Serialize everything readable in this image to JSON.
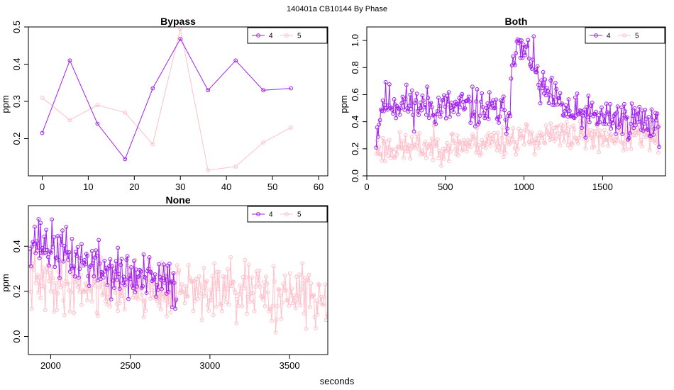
{
  "figure": {
    "suptitle": "140401a    CB10144   By Phase",
    "xlabel": "seconds"
  },
  "chart_data": [
    {
      "type": "line",
      "title": "Bypass",
      "ylabel": "ppm",
      "xlim": [
        -3,
        62
      ],
      "ylim": [
        0.1,
        0.5
      ],
      "xticks": [
        0,
        10,
        20,
        30,
        40,
        50,
        60
      ],
      "yticks": [
        0.2,
        0.3,
        0.4,
        0.5
      ],
      "legend": {
        "entries": [
          "4",
          "5"
        ],
        "position": "top-right"
      },
      "series": [
        {
          "name": "4",
          "color": "#a020f0",
          "x": [
            0,
            6,
            12,
            18,
            24,
            30,
            36,
            42,
            48,
            54
          ],
          "y": [
            0.215,
            0.41,
            0.24,
            0.145,
            0.335,
            0.468,
            0.33,
            0.41,
            0.33,
            0.335
          ]
        },
        {
          "name": "5",
          "color": "#ffc0cb",
          "x": [
            0,
            6,
            12,
            18,
            24,
            30,
            36,
            42,
            48,
            54
          ],
          "y": [
            0.31,
            0.25,
            0.29,
            0.27,
            0.185,
            0.495,
            0.115,
            0.125,
            0.19,
            0.23
          ]
        }
      ]
    },
    {
      "type": "line",
      "title": "Both",
      "ylabel": "ppm",
      "xlim": [
        0,
        1900
      ],
      "ylim": [
        0.0,
        1.1
      ],
      "xticks": [
        0,
        500,
        1000,
        1500
      ],
      "yticks": [
        0.0,
        0.2,
        0.4,
        0.6,
        0.8,
        1.0
      ],
      "legend": {
        "entries": [
          "4",
          "5"
        ],
        "position": "top-right"
      },
      "series": [
        {
          "name": "4",
          "color": "#a020f0",
          "x_range": [
            60,
            1860
          ],
          "step": 6,
          "seed": 11,
          "levels": [
            [
              60,
              0.3
            ],
            [
              100,
              0.55
            ],
            [
              500,
              0.5
            ],
            [
              700,
              0.5
            ],
            [
              910,
              0.45
            ],
            [
              925,
              0.95
            ],
            [
              1050,
              0.88
            ],
            [
              1100,
              0.65
            ],
            [
              1300,
              0.45
            ],
            [
              1860,
              0.4
            ]
          ],
          "spread": 0.09
        },
        {
          "name": "5",
          "color": "#ffc0cb",
          "x_range": [
            60,
            1860
          ],
          "step": 6,
          "seed": 23,
          "levels": [
            [
              60,
              0.2
            ],
            [
              500,
              0.22
            ],
            [
              1000,
              0.28
            ],
            [
              1300,
              0.3
            ],
            [
              1860,
              0.28
            ]
          ],
          "spread": 0.07
        }
      ]
    },
    {
      "type": "line",
      "title": "None",
      "ylabel": "ppm",
      "xlim": [
        1860,
        3740
      ],
      "ylim": [
        -0.08,
        0.58
      ],
      "xticks": [
        2000,
        2500,
        3000,
        3500
      ],
      "yticks": [
        0.0,
        0.2,
        0.4
      ],
      "legend": {
        "entries": [
          "4",
          "5"
        ],
        "position": "top-right"
      },
      "series": [
        {
          "name": "4",
          "color": "#a020f0",
          "x_range": [
            1870,
            2790
          ],
          "step": 6,
          "seed": 37,
          "levels": [
            [
              1870,
              0.44
            ],
            [
              2100,
              0.36
            ],
            [
              2400,
              0.28
            ],
            [
              2790,
              0.22
            ]
          ],
          "spread": 0.07
        },
        {
          "name": "5",
          "color": "#ffc0cb",
          "x_range": [
            1870,
            3740
          ],
          "step": 6,
          "seed": 41,
          "levels": [
            [
              1870,
              0.24
            ],
            [
              2500,
              0.22
            ],
            [
              3000,
              0.2
            ],
            [
              3740,
              0.17
            ]
          ],
          "spread": 0.08
        }
      ]
    }
  ]
}
